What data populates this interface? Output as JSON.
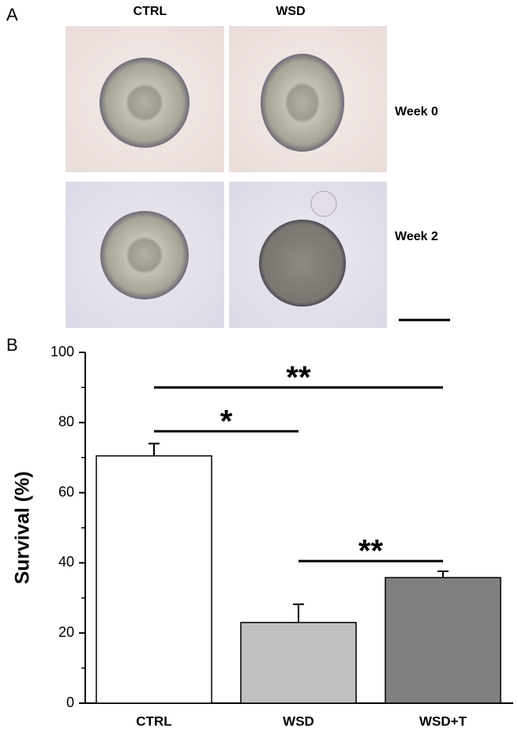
{
  "panel_a": {
    "label": "A",
    "columns": [
      "CTRL",
      "WSD"
    ],
    "rows": [
      "Week 0",
      "Week 2"
    ]
  },
  "chart_data": {
    "type": "bar",
    "panel_label": "B",
    "ylabel": "Survival (%)",
    "categories": [
      "CTRL",
      "WSD",
      "WSD+T"
    ],
    "values": [
      70.5,
      23,
      35.8
    ],
    "errors": [
      3.5,
      5.2,
      1.8
    ],
    "colors": [
      "#ffffff",
      "#c0c0c0",
      "#808080"
    ],
    "ylim": [
      0,
      100
    ],
    "yticks": [
      0,
      20,
      40,
      60,
      80,
      100
    ],
    "annotations": [
      {
        "text": "**",
        "from": "CTRL",
        "to": "WSD+T",
        "y": 90
      },
      {
        "text": "*",
        "from": "CTRL",
        "to": "WSD",
        "y": 77.5
      },
      {
        "text": "**",
        "from": "WSD",
        "to": "WSD+T",
        "y": 40.5
      }
    ]
  }
}
